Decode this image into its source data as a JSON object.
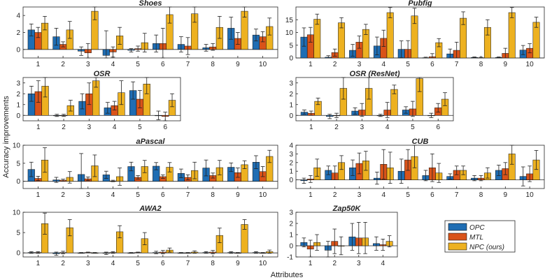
{
  "figure": {
    "ylabel": "Accuracy improvements",
    "xlabel": "Attributes"
  },
  "colors": {
    "OPC": "#1f6db3",
    "MTL": "#d95319",
    "NPC": "#edb120",
    "axis": "#262626",
    "err": "#222222"
  },
  "chart_data": [
    {
      "type": "bar",
      "title": "Shoes",
      "categories": [
        "1",
        "2",
        "3",
        "4",
        "5",
        "6",
        "7",
        "8",
        "9",
        "10"
      ],
      "ylim": [
        -1,
        5
      ],
      "yticks": [
        0,
        2,
        4
      ],
      "series": [
        {
          "name": "OPC",
          "values": [
            2.3,
            1.5,
            -0.2,
            -0.7,
            -0.1,
            0.7,
            0.6,
            0.2,
            2.5,
            1.7
          ]
        },
        {
          "name": "MTL",
          "values": [
            2.0,
            0.6,
            -0.4,
            -0.3,
            0.1,
            0.7,
            0.4,
            0.3,
            1.3,
            1.5
          ]
        },
        {
          "name": "NPC (ours)",
          "values": [
            3.1,
            2.3,
            4.5,
            1.6,
            0.8,
            4.1,
            4.2,
            2.6,
            4.5,
            2.7
          ]
        }
      ],
      "errors": [
        [
          0.7,
          1.0,
          0.5,
          2.9,
          0.2,
          1.0,
          0.9,
          0.4,
          1.3,
          0.7
        ],
        [
          0.6,
          0.3,
          1.1,
          0.6,
          0.3,
          1.8,
          1.0,
          0.4,
          0.7,
          0.6
        ],
        [
          0.8,
          1.0,
          1.0,
          1.0,
          1.1,
          1.0,
          1.0,
          1.3,
          0.7,
          1.0
        ]
      ]
    },
    {
      "type": "bar",
      "title": "Pubfig",
      "categories": [
        "1",
        "2",
        "3",
        "4",
        "5",
        "6",
        "7",
        "8",
        "9",
        "10"
      ],
      "ylim": [
        0,
        20
      ],
      "yticks": [
        0,
        5,
        10,
        15
      ],
      "series": [
        {
          "name": "OPC",
          "values": [
            8.2,
            0.3,
            3.0,
            4.7,
            3.4,
            0.1,
            1.6,
            0.2,
            0.2,
            3.1
          ]
        },
        {
          "name": "MTL",
          "values": [
            9.1,
            2.1,
            6.2,
            7.7,
            3.4,
            0.5,
            3.0,
            0.1,
            1.8,
            3.8
          ]
        },
        {
          "name": "NPC (ours)",
          "values": [
            15.2,
            13.8,
            11.2,
            17.8,
            16.5,
            6.0,
            15.6,
            12.0,
            17.8,
            14.0
          ]
        }
      ],
      "errors": [
        [
          3.6,
          0.6,
          2.3,
          3.5,
          3.3,
          0.2,
          1.9,
          0.2,
          0.2,
          1.8
        ],
        [
          2.9,
          1.4,
          2.4,
          3.2,
          3.4,
          1.2,
          3.2,
          0.2,
          2.0,
          1.8
        ],
        [
          2.0,
          2.0,
          2.0,
          2.0,
          3.0,
          1.6,
          2.5,
          3.0,
          2.0,
          2.0
        ]
      ]
    },
    {
      "type": "bar",
      "title": "OSR",
      "categories": [
        "1",
        "2",
        "3",
        "4",
        "5",
        "6"
      ],
      "ylim": [
        -0.5,
        3.5
      ],
      "yticks": [
        0,
        1,
        2,
        3
      ],
      "series": [
        {
          "name": "OPC",
          "values": [
            2.0,
            0.0,
            1.3,
            0.7,
            2.3,
            0.0
          ]
        },
        {
          "name": "MTL",
          "values": [
            2.2,
            0.0,
            2.0,
            0.9,
            1.5,
            -0.1
          ]
        },
        {
          "name": "NPC (ours)",
          "values": [
            2.7,
            0.9,
            3.2,
            2.1,
            2.9,
            1.4
          ]
        }
      ],
      "errors": [
        [
          0.7,
          0.1,
          0.7,
          0.5,
          0.8,
          0.4
        ],
        [
          1.0,
          0.1,
          1.0,
          0.4,
          0.8,
          0.4
        ],
        [
          1.0,
          0.5,
          0.6,
          1.1,
          0.9,
          0.6
        ]
      ]
    },
    {
      "type": "bar",
      "title": "OSR (ResNet)",
      "categories": [
        "1",
        "2",
        "3",
        "4",
        "5",
        "6"
      ],
      "ylim": [
        -0.5,
        3.5
      ],
      "yticks": [
        0,
        1,
        2,
        3
      ],
      "series": [
        {
          "name": "OPC",
          "values": [
            0.3,
            -0.1,
            0.4,
            0.0,
            0.5,
            0.0
          ]
        },
        {
          "name": "MTL",
          "values": [
            0.2,
            0.0,
            0.5,
            0.5,
            0.6,
            0.7
          ]
        },
        {
          "name": "NPC (ours)",
          "values": [
            1.3,
            2.5,
            2.5,
            2.4,
            3.4,
            1.5
          ]
        }
      ],
      "errors": [
        [
          0.2,
          0.2,
          0.3,
          0.1,
          0.3,
          0.2
        ],
        [
          0.2,
          0.2,
          0.6,
          0.7,
          0.7,
          0.4
        ],
        [
          0.3,
          1.0,
          1.0,
          0.4,
          1.2,
          0.6
        ]
      ]
    },
    {
      "type": "bar",
      "title": "aPascal",
      "categories": [
        "1",
        "2",
        "3",
        "4",
        "5",
        "6",
        "7",
        "8",
        "9",
        "10"
      ],
      "ylim": [
        -2,
        10
      ],
      "yticks": [
        0,
        5,
        10
      ],
      "series": [
        {
          "name": "OPC",
          "values": [
            3.3,
            0.4,
            1.9,
            1.8,
            4.1,
            4.2,
            2.2,
            3.7,
            3.9,
            5.3
          ]
        },
        {
          "name": "MTL",
          "values": [
            0.8,
            0.3,
            0.7,
            0.1,
            1.1,
            1.3,
            1.1,
            1.6,
            2.4,
            2.7
          ]
        },
        {
          "name": "NPC (ours)",
          "values": [
            5.9,
            1.1,
            4.3,
            1.3,
            4.1,
            3.9,
            3.0,
            3.8,
            4.6,
            6.9
          ]
        }
      ],
      "errors": [
        [
          2.0,
          0.7,
          5.8,
          1.0,
          1.2,
          1.0,
          1.2,
          2.2,
          1.2,
          1.8
        ],
        [
          0.6,
          0.3,
          0.5,
          0.2,
          0.5,
          0.5,
          0.7,
          0.7,
          1.3,
          1.4
        ],
        [
          3.4,
          1.6,
          3.0,
          2.4,
          1.7,
          1.3,
          2.3,
          2.0,
          1.1,
          1.7
        ]
      ]
    },
    {
      "type": "bar",
      "title": "CUB",
      "categories": [
        "1",
        "2",
        "3",
        "4",
        "5",
        "6",
        "7",
        "8",
        "9",
        "10"
      ],
      "ylim": [
        -1,
        4
      ],
      "yticks": [
        0,
        1,
        2,
        3,
        4
      ],
      "series": [
        {
          "name": "OPC",
          "values": [
            -0.1,
            1.1,
            1.4,
            0.2,
            1.0,
            0.5,
            0.4,
            0.2,
            1.1,
            0.4
          ]
        },
        {
          "name": "MTL",
          "values": [
            0.1,
            0.8,
            1.9,
            1.8,
            2.3,
            1.4,
            1.1,
            0.2,
            1.3,
            0.7
          ]
        },
        {
          "name": "NPC (ours)",
          "values": [
            1.4,
            2.0,
            2.2,
            1.4,
            2.7,
            0.8,
            1.1,
            0.8,
            3.0,
            2.3
          ]
        }
      ],
      "errors": [
        [
          0.3,
          0.5,
          0.9,
          0.7,
          1.4,
          0.6,
          0.3,
          0.3,
          0.6,
          1.1
        ],
        [
          0.4,
          0.8,
          1.2,
          1.7,
          1.2,
          1.6,
          0.5,
          0.3,
          0.7,
          0.9
        ],
        [
          1.0,
          0.8,
          1.1,
          1.8,
          1.3,
          1.1,
          0.5,
          0.6,
          1.2,
          1.1
        ]
      ]
    },
    {
      "type": "bar",
      "title": "AWA2",
      "categories": [
        "1",
        "2",
        "3",
        "4",
        "5",
        "6",
        "7",
        "8",
        "9",
        "10"
      ],
      "ylim": [
        -1,
        10
      ],
      "yticks": [
        0,
        5,
        10
      ],
      "series": [
        {
          "name": "OPC",
          "values": [
            0.1,
            -0.2,
            0.0,
            -0.1,
            0.0,
            0.1,
            0.0,
            0.1,
            0.1,
            0.1
          ]
        },
        {
          "name": "MTL",
          "values": [
            0.1,
            0.1,
            0.1,
            0.1,
            0.1,
            0.2,
            0.0,
            0.2,
            0.0,
            0.0
          ]
        },
        {
          "name": "NPC (ours)",
          "values": [
            7.2,
            6.2,
            0.0,
            5.2,
            3.5,
            0.7,
            0.2,
            4.3,
            7.0,
            0.3
          ]
        }
      ],
      "errors": [
        [
          0.2,
          0.4,
          0.1,
          0.3,
          0.1,
          0.3,
          0.1,
          0.2,
          0.2,
          0.2
        ],
        [
          0.2,
          0.3,
          0.1,
          0.2,
          0.1,
          0.4,
          0.1,
          0.4,
          0.1,
          0.1
        ],
        [
          2.6,
          2.0,
          0.1,
          1.5,
          1.5,
          0.5,
          0.3,
          1.8,
          1.2,
          0.4
        ]
      ]
    },
    {
      "type": "bar",
      "title": "Zap50K",
      "categories": [
        "1",
        "2",
        "3",
        "4"
      ],
      "ylim": [
        -1,
        3
      ],
      "yticks": [
        -1,
        0,
        1,
        2,
        3
      ],
      "series": [
        {
          "name": "OPC",
          "values": [
            0.3,
            -0.4,
            0.8,
            0.2
          ]
        },
        {
          "name": "MTL",
          "values": [
            -0.3,
            0.4,
            0.7,
            0.1
          ]
        },
        {
          "name": "NPC (ours)",
          "values": [
            0.3,
            0.0,
            0.7,
            0.4
          ]
        }
      ],
      "errors": [
        [
          0.4,
          0.8,
          1.2,
          0.6
        ],
        [
          0.8,
          1.1,
          1.4,
          0.5
        ],
        [
          0.7,
          0.8,
          1.4,
          0.5
        ]
      ]
    }
  ],
  "legend": {
    "position": "lower-right",
    "items": [
      {
        "name": "OPC",
        "label": "OPC"
      },
      {
        "name": "MTL",
        "label": "MTL"
      },
      {
        "name": "NPC",
        "label": "NPC (ours)"
      }
    ]
  }
}
